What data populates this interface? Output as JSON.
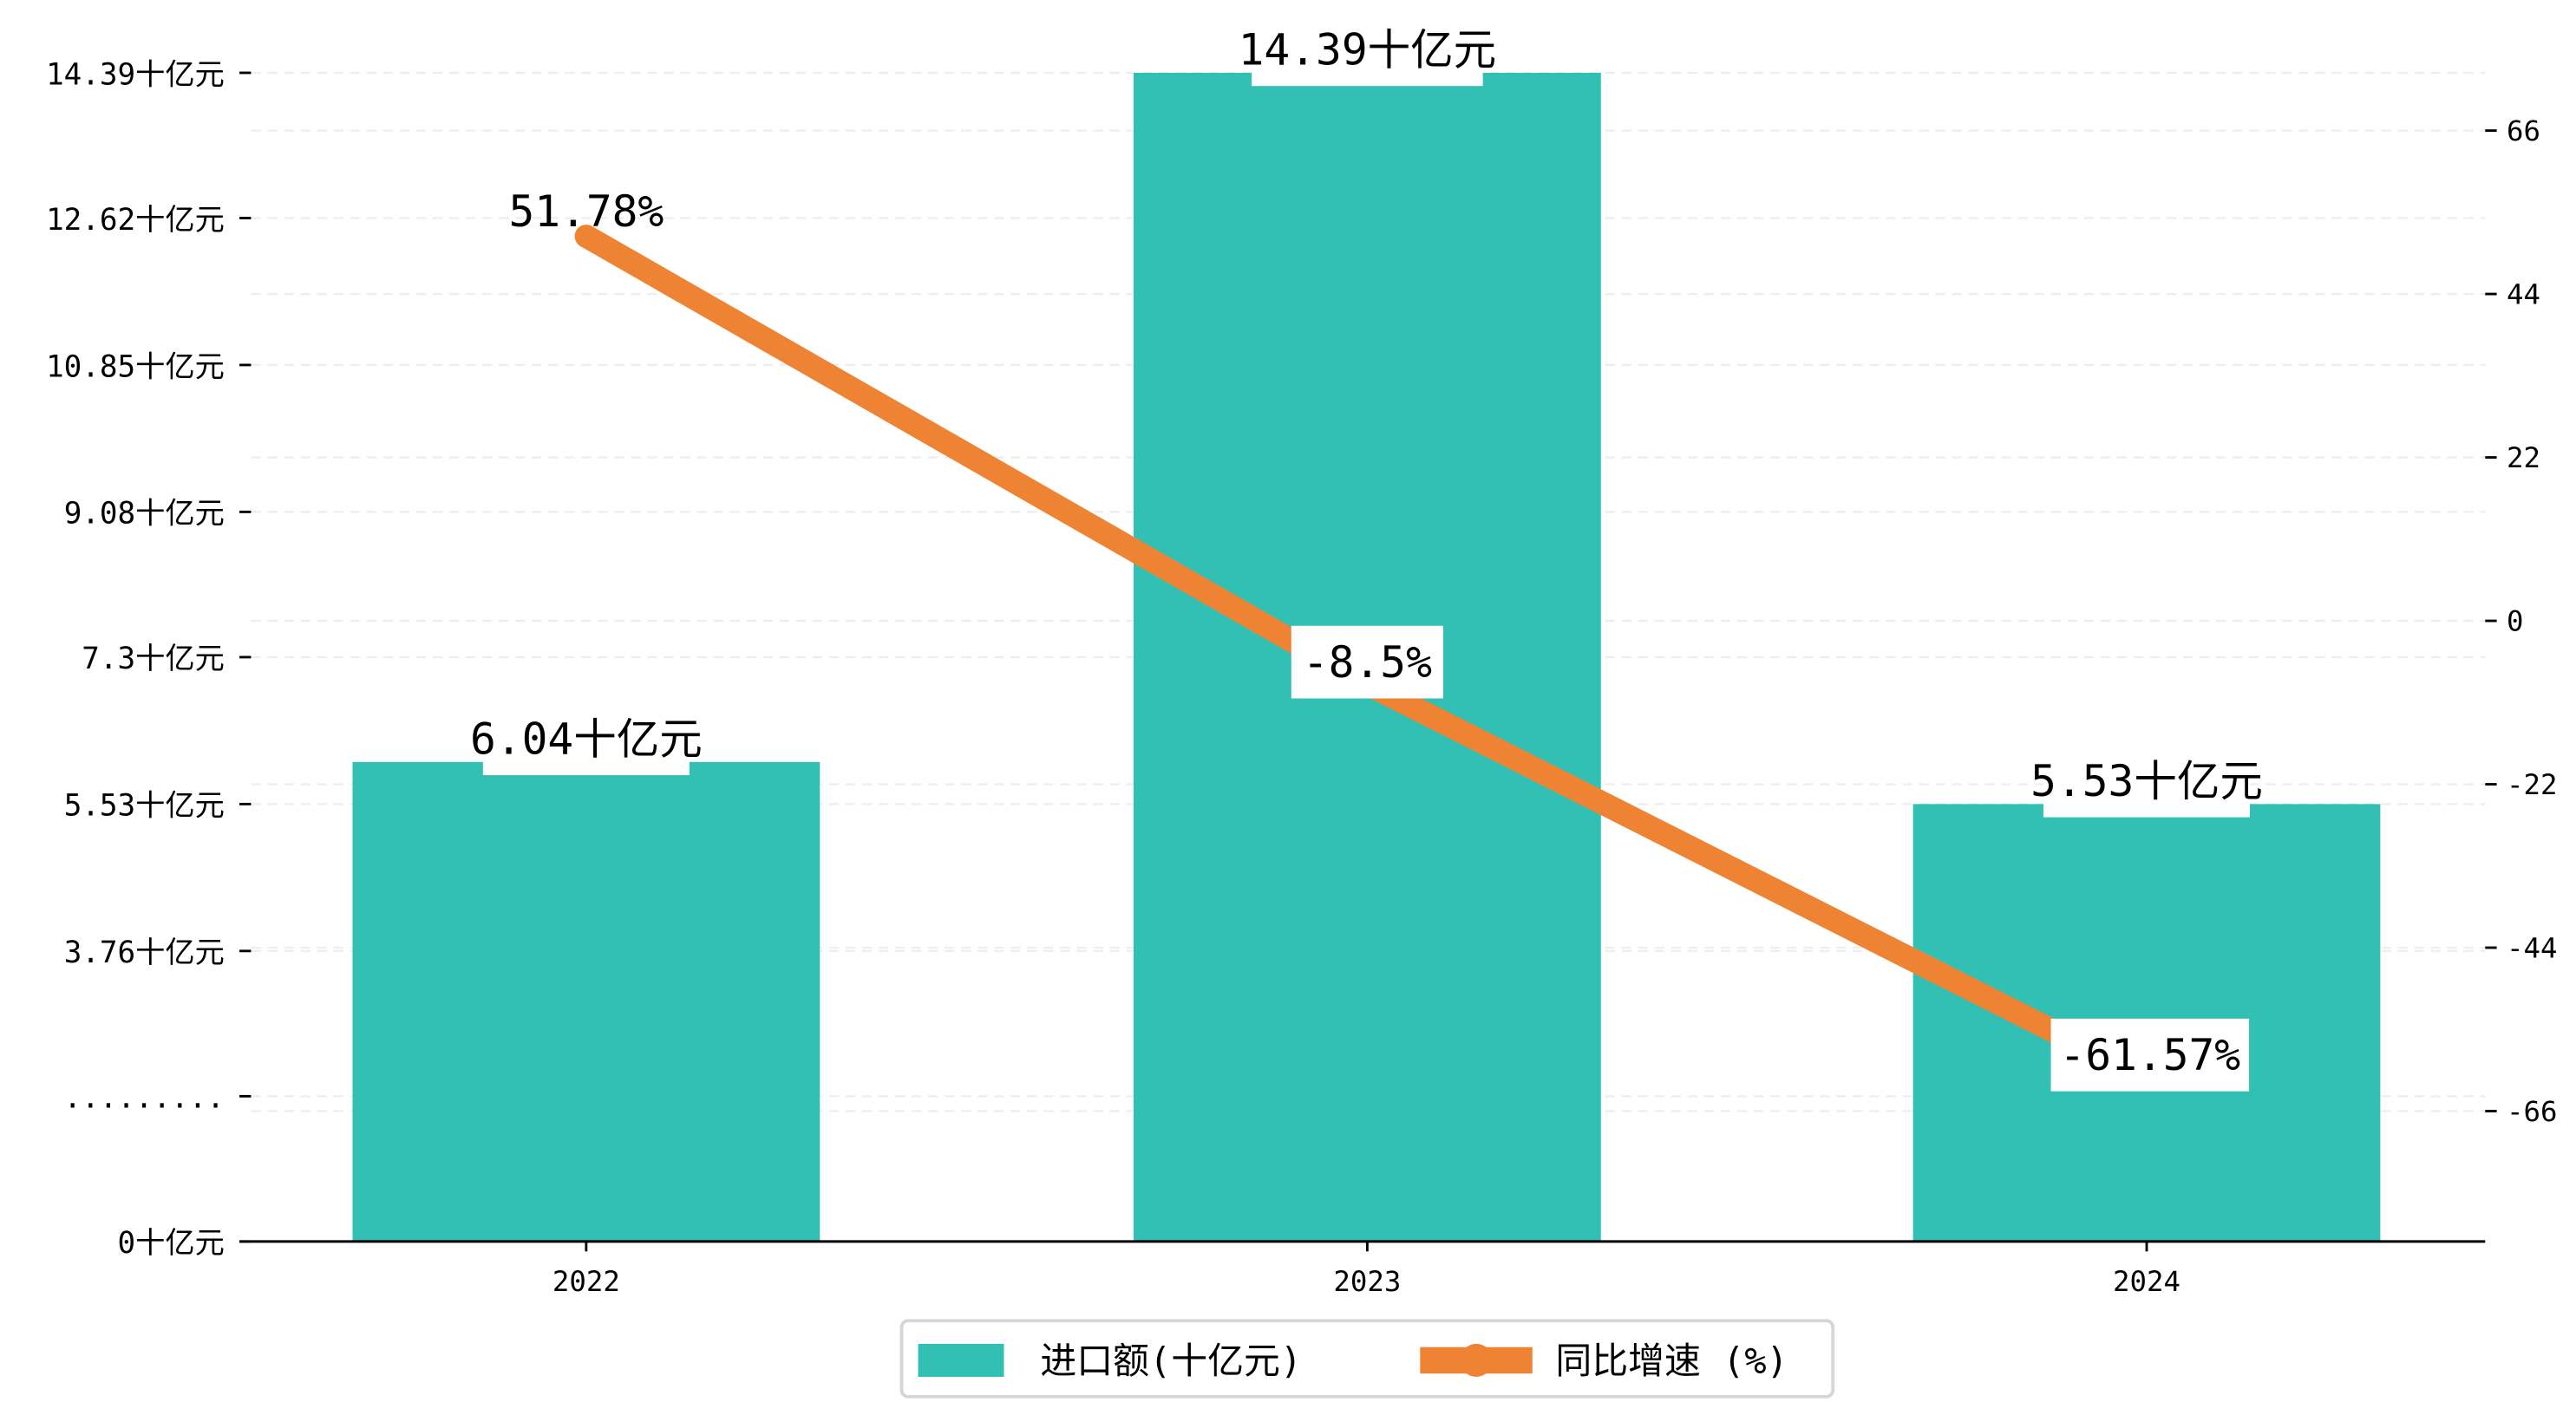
{
  "chart_data": {
    "type": "bar+line",
    "categories": [
      "2022",
      "2023",
      "2024"
    ],
    "series": [
      {
        "name": "进口额(十亿元)",
        "type": "bar",
        "axis": "left",
        "values": [
          6.04,
          14.39,
          5.53
        ],
        "labels": [
          "6.04十亿元",
          "14.39十亿元",
          "5.53十亿元"
        ],
        "color": "#32c0b4"
      },
      {
        "name": "同比增速 (%)",
        "type": "line",
        "axis": "right",
        "values": [
          51.78,
          -8.5,
          -61.57
        ],
        "labels": [
          "51.78%",
          "-8.5%",
          "-61.57%"
        ],
        "color": "#ee8433"
      }
    ],
    "left_ticks": [
      {
        "v": 14.39,
        "label": "14.39十亿元"
      },
      {
        "v": 12.62,
        "label": "12.62十亿元"
      },
      {
        "v": 10.85,
        "label": "10.85十亿元"
      },
      {
        "v": 9.08,
        "label": "9.08十亿元"
      },
      {
        "v": 7.3,
        "label": "7.3十亿元"
      },
      {
        "v": 5.53,
        "label": "5.53十亿元"
      },
      {
        "v": 3.76,
        "label": "3.76十亿元"
      },
      {
        "v": 2.0,
        "label": "........."
      },
      {
        "v": 0,
        "label": "0十亿元"
      }
    ],
    "right_ticks": [
      66,
      44,
      22,
      0,
      -22,
      -44,
      -66
    ],
    "right_ylim": [
      -84,
      82
    ],
    "grid": true,
    "legend": {
      "placement": "bottom-center",
      "items": [
        "进口额(十亿元)",
        "同比增速 (%)"
      ]
    }
  }
}
